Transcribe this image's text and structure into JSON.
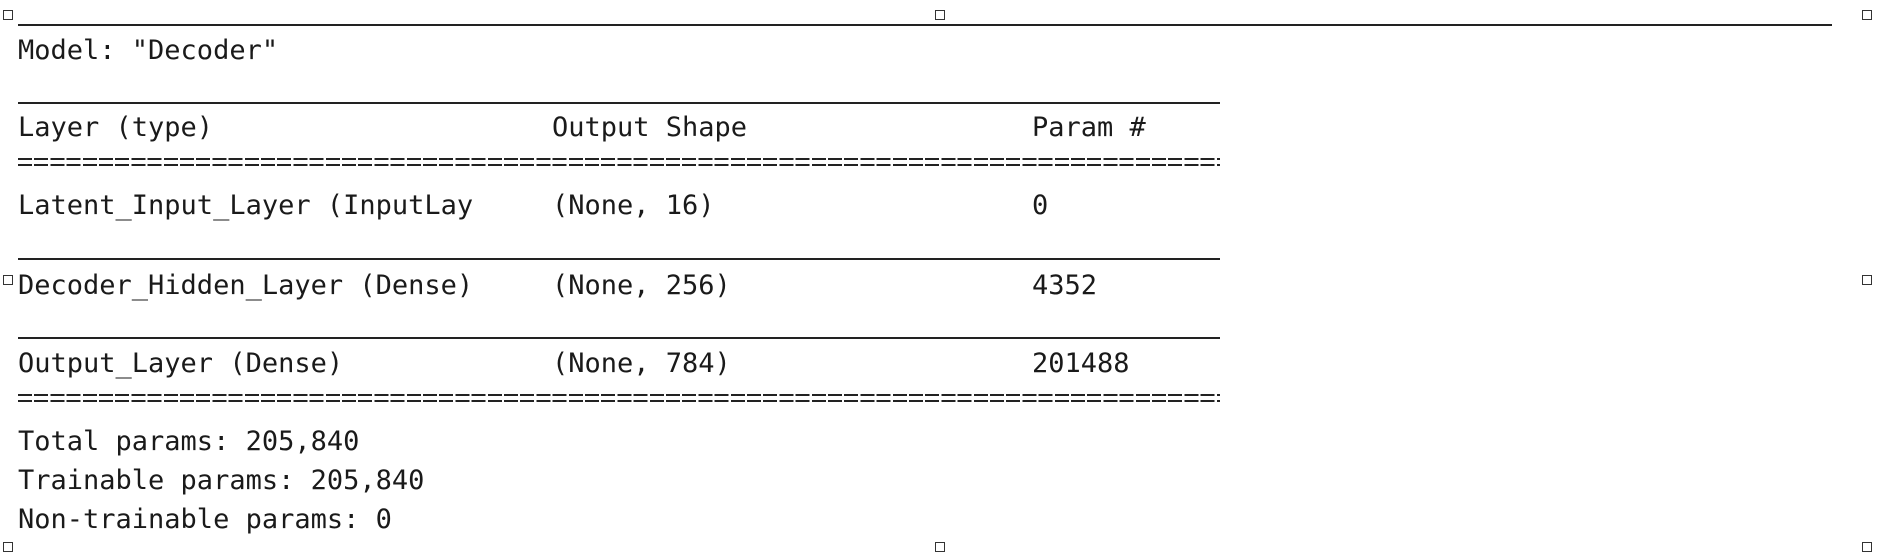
{
  "model_summary": {
    "title": "Model: \"Decoder\"",
    "headers": {
      "layer": "Layer (type)",
      "output_shape": "Output Shape",
      "params": "Param #"
    },
    "rows": [
      {
        "layer": "Latent_Input_Layer (InputLay",
        "output_shape": "(None, 16)",
        "params": "0"
      },
      {
        "layer": "Decoder_Hidden_Layer (Dense)",
        "output_shape": "(None, 256)",
        "params": "4352"
      },
      {
        "layer": "Output_Layer (Dense)",
        "output_shape": "(None, 784)",
        "params": "201488"
      }
    ],
    "totals": {
      "total": "Total params: 205,840",
      "trainable": "Trainable params: 205,840",
      "non_trainable": "Non-trainable params: 0"
    }
  }
}
